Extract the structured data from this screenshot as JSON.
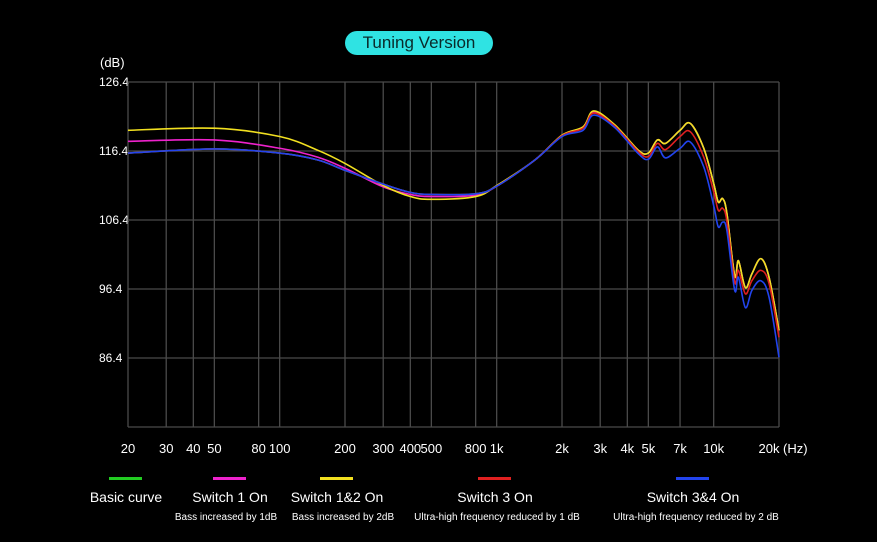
{
  "chart_data": {
    "type": "line",
    "title": "Tuning Version",
    "ylabel": "(dB)",
    "xlabel": "(Hz)",
    "xscale": "log",
    "xlim": [
      20,
      20000
    ],
    "ylim": [
      76.4,
      126.4
    ],
    "y_ticks": [
      126.4,
      116.4,
      106.4,
      96.4,
      86.4
    ],
    "x_ticks": [
      {
        "v": 20,
        "label": "20"
      },
      {
        "v": 30,
        "label": "30"
      },
      {
        "v": 40,
        "label": "40"
      },
      {
        "v": 50,
        "label": "50"
      },
      {
        "v": 80,
        "label": "80"
      },
      {
        "v": 100,
        "label": "100"
      },
      {
        "v": 200,
        "label": "200"
      },
      {
        "v": 300,
        "label": "300"
      },
      {
        "v": 400,
        "label": "400"
      },
      {
        "v": 500,
        "label": "500"
      },
      {
        "v": 800,
        "label": "800"
      },
      {
        "v": 1000,
        "label": "1k"
      },
      {
        "v": 2000,
        "label": "2k"
      },
      {
        "v": 3000,
        "label": "3k"
      },
      {
        "v": 4000,
        "label": "4k"
      },
      {
        "v": 5000,
        "label": "5k"
      },
      {
        "v": 7000,
        "label": "7k"
      },
      {
        "v": 10000,
        "label": "10k"
      },
      {
        "v": 20000,
        "label": "20k"
      }
    ],
    "grid": true,
    "legend_position": "bottom",
    "x": [
      20,
      50,
      100,
      150,
      200,
      300,
      400,
      500,
      800,
      1000,
      1500,
      2000,
      2500,
      2800,
      3500,
      4500,
      5000,
      5500,
      6000,
      7000,
      7800,
      9000,
      10000,
      10500,
      11000,
      11500,
      12500,
      13000,
      14000,
      15000,
      16500,
      18000,
      20000
    ],
    "series": [
      {
        "name": "Basic curve",
        "sub": "",
        "color": "#22cc22",
        "values": [
          116.1,
          116.7,
          116.1,
          115.1,
          113.6,
          111.6,
          110.4,
          110.1,
          110.2,
          111.3,
          115.1,
          118.6,
          119.8,
          122.0,
          120.1,
          116.5,
          116.1,
          118.0,
          117.5,
          119.4,
          120.4,
          116.8,
          111.7,
          109.0,
          109.5,
          107.4,
          98.3,
          100.5,
          96.6,
          98.6,
          100.8,
          98.1,
          90.4
        ]
      },
      {
        "name": "Switch 1 On",
        "sub": "Bass increased by 1dB",
        "color": "#ee22cc",
        "values": [
          117.8,
          118.0,
          116.8,
          115.5,
          113.9,
          111.2,
          110.1,
          109.8,
          110.0,
          111.3,
          115.1,
          118.6,
          119.8,
          122.0,
          120.1,
          116.5,
          116.1,
          118.0,
          117.5,
          119.4,
          120.4,
          116.8,
          111.7,
          109.0,
          109.5,
          107.4,
          98.3,
          100.5,
          96.6,
          98.6,
          100.8,
          98.1,
          90.4
        ]
      },
      {
        "name": "Switch 1&2 On",
        "sub": "Bass increased by 2dB",
        "color": "#f2e020",
        "values": [
          119.4,
          119.7,
          118.5,
          116.5,
          114.6,
          111.4,
          109.8,
          109.4,
          109.8,
          111.4,
          115.1,
          118.7,
          119.9,
          122.2,
          120.2,
          116.5,
          116.1,
          118.0,
          117.5,
          119.4,
          120.4,
          116.8,
          111.7,
          109.0,
          109.5,
          107.4,
          98.3,
          100.5,
          96.6,
          98.6,
          100.8,
          98.1,
          90.4
        ]
      },
      {
        "name": "Switch 3 On",
        "sub": "Ultra-high frequency reduced by 1 dB",
        "color": "#e02020",
        "values": [
          116.1,
          116.7,
          116.1,
          115.1,
          113.6,
          111.6,
          110.4,
          110.1,
          110.2,
          111.3,
          115.1,
          118.6,
          119.7,
          121.9,
          120.0,
          116.3,
          115.6,
          117.5,
          116.6,
          118.5,
          119.2,
          115.5,
          110.5,
          107.8,
          108.1,
          106.3,
          97.4,
          99.1,
          95.7,
          97.6,
          99.1,
          97.2,
          89.4
        ]
      },
      {
        "name": "Switch 3&4 On",
        "sub": "Ultra-high frequency reduced by 2 dB",
        "color": "#2244ee",
        "values": [
          116.1,
          116.7,
          116.1,
          115.1,
          113.6,
          111.6,
          110.4,
          110.1,
          110.2,
          111.3,
          115.1,
          118.5,
          119.4,
          121.6,
          119.8,
          116.0,
          115.2,
          117.0,
          115.4,
          116.8,
          117.7,
          114.1,
          108.5,
          105.4,
          106.1,
          104.9,
          96.2,
          98.1,
          93.7,
          96.2,
          97.6,
          95.2,
          86.5
        ]
      }
    ]
  }
}
